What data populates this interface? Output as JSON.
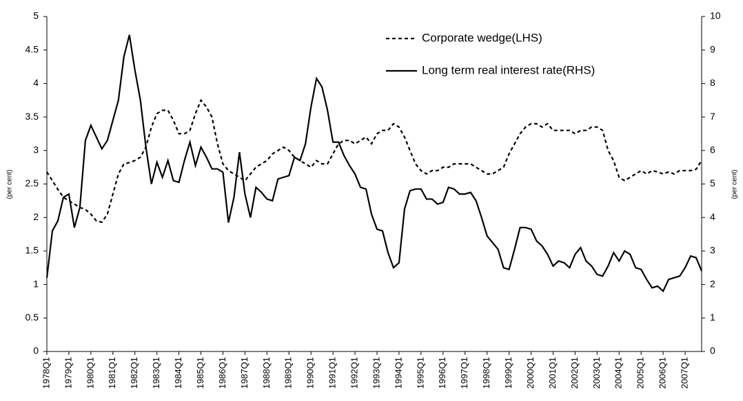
{
  "chart_data": {
    "type": "line",
    "y_label": "(per cent)",
    "y2_label": "(per cent)",
    "categories": [
      "1978Q1",
      null,
      null,
      null,
      "1979Q1",
      null,
      null,
      null,
      "1980Q1",
      null,
      null,
      null,
      "1981Q1",
      null,
      null,
      null,
      "1982Q1",
      null,
      null,
      null,
      "1983Q1",
      null,
      null,
      null,
      "1984Q1",
      null,
      null,
      null,
      "1985Q1",
      null,
      null,
      null,
      "1986Q1",
      null,
      null,
      null,
      "1987Q1",
      null,
      null,
      null,
      "1988Q1",
      null,
      null,
      null,
      "1989Q1",
      null,
      null,
      null,
      "1990Q1",
      null,
      null,
      null,
      "1991Q1",
      null,
      null,
      null,
      "1992Q1",
      null,
      null,
      null,
      "1993Q1",
      null,
      null,
      null,
      "1994Q1",
      null,
      null,
      null,
      "1995Q1",
      null,
      null,
      null,
      "1996Q1",
      null,
      null,
      null,
      "1997Q1",
      null,
      null,
      null,
      "1998Q1",
      null,
      null,
      null,
      "1999Q1",
      null,
      null,
      null,
      "2000Q1",
      null,
      null,
      null,
      "2001Q1",
      null,
      null,
      null,
      "2002Q1",
      null,
      null,
      null,
      "2003Q1",
      null,
      null,
      null,
      "2004Q1",
      null,
      null,
      null,
      "2005Q1",
      null,
      null,
      null,
      "2006Q1",
      null,
      null,
      null,
      "2007Q1",
      null,
      null,
      null
    ],
    "series": [
      {
        "name": "Corporate wedge(LHS)",
        "color": "#000000",
        "dash": "dashed",
        "axis": "y",
        "values": [
          2.68,
          2.55,
          2.42,
          2.3,
          2.25,
          2.2,
          2.15,
          2.12,
          2.05,
          1.95,
          1.93,
          2.05,
          2.35,
          2.65,
          2.8,
          2.82,
          2.85,
          2.9,
          3.05,
          3.35,
          3.55,
          3.6,
          3.6,
          3.45,
          3.25,
          3.25,
          3.3,
          3.55,
          3.75,
          3.65,
          3.5,
          3.1,
          2.8,
          2.7,
          2.65,
          2.6,
          2.55,
          2.65,
          2.75,
          2.8,
          2.85,
          2.95,
          3.0,
          3.05,
          3.0,
          2.9,
          2.85,
          2.8,
          2.75,
          2.85,
          2.8,
          2.8,
          2.95,
          3.1,
          3.15,
          3.15,
          3.1,
          3.15,
          3.2,
          3.1,
          3.25,
          3.3,
          3.3,
          3.4,
          3.35,
          3.2,
          3.0,
          2.8,
          2.7,
          2.65,
          2.7,
          2.7,
          2.75,
          2.75,
          2.8,
          2.8,
          2.8,
          2.8,
          2.75,
          2.7,
          2.65,
          2.65,
          2.7,
          2.75,
          2.95,
          3.1,
          3.25,
          3.35,
          3.4,
          3.4,
          3.35,
          3.4,
          3.3,
          3.3,
          3.3,
          3.3,
          3.25,
          3.3,
          3.3,
          3.35,
          3.35,
          3.3,
          3.0,
          2.85,
          2.6,
          2.55,
          2.6,
          2.65,
          2.7,
          2.65,
          2.7,
          2.68,
          2.65,
          2.68,
          2.65,
          2.7,
          2.7,
          2.7,
          2.72,
          2.85
        ]
      },
      {
        "name": "Long term real interest rate(RHS)",
        "color": "#000000",
        "dash": "solid",
        "axis": "y2",
        "values": [
          2.2,
          3.6,
          3.9,
          4.6,
          4.7,
          3.7,
          4.3,
          6.3,
          6.75,
          6.4,
          6.05,
          6.3,
          6.9,
          7.5,
          8.8,
          9.45,
          8.4,
          7.5,
          6.1,
          5.0,
          5.65,
          5.2,
          5.7,
          5.1,
          5.05,
          5.7,
          6.25,
          5.55,
          6.1,
          5.8,
          5.45,
          5.45,
          5.35,
          3.85,
          4.6,
          5.95,
          4.7,
          4.0,
          4.9,
          4.75,
          4.55,
          4.5,
          5.15,
          5.2,
          5.25,
          5.8,
          5.7,
          6.2,
          7.3,
          8.15,
          7.9,
          7.2,
          6.25,
          6.25,
          5.85,
          5.55,
          5.3,
          4.9,
          4.85,
          4.1,
          3.65,
          3.6,
          2.95,
          2.5,
          2.65,
          4.25,
          4.8,
          4.85,
          4.85,
          4.55,
          4.55,
          4.4,
          4.45,
          4.9,
          4.85,
          4.7,
          4.7,
          4.75,
          4.5,
          4.0,
          3.45,
          3.25,
          3.05,
          2.5,
          2.45,
          3.05,
          3.7,
          3.7,
          3.65,
          3.3,
          3.15,
          2.9,
          2.55,
          2.7,
          2.65,
          2.5,
          2.9,
          3.1,
          2.7,
          2.55,
          2.3,
          2.25,
          2.55,
          2.95,
          2.7,
          3.0,
          2.9,
          2.5,
          2.45,
          2.15,
          1.9,
          1.95,
          1.8,
          2.15,
          2.2,
          2.25,
          2.5,
          2.85,
          2.8,
          2.4
        ]
      }
    ],
    "ylim": [
      0,
      5
    ],
    "yticks": [
      0,
      0.5,
      1,
      1.5,
      2,
      2.5,
      3,
      3.5,
      4,
      4.5,
      5
    ],
    "y2lim": [
      0,
      10
    ],
    "y2ticks": [
      0,
      1,
      2,
      3,
      4,
      5,
      6,
      7,
      8,
      9,
      10
    ],
    "grid": false
  }
}
